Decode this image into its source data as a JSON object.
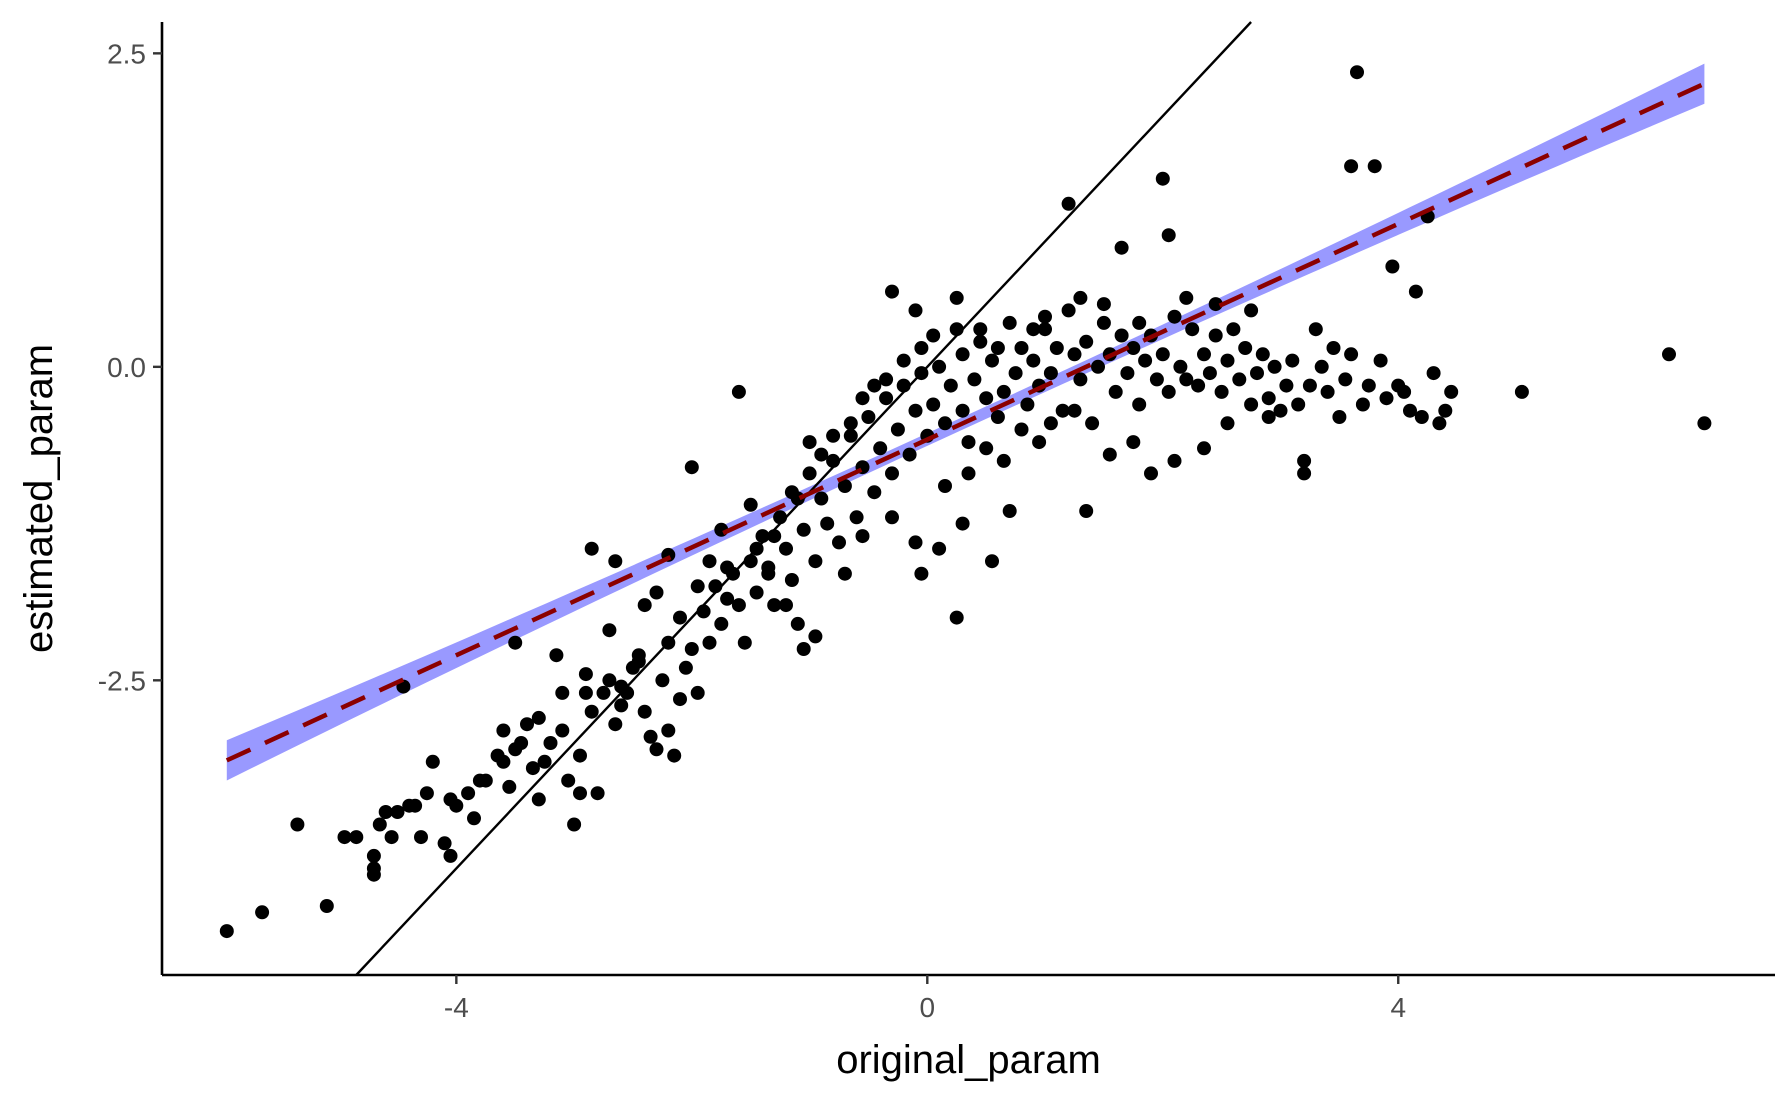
{
  "chart_data": {
    "type": "scatter",
    "title": "",
    "xlabel": "original_param",
    "ylabel": "estimated_param",
    "xlim": [
      -6.5,
      7.2
    ],
    "ylim": [
      -4.85,
      2.75
    ],
    "x_ticks": [
      -4,
      0,
      4
    ],
    "x_tick_labels": [
      "-4",
      "0",
      "4"
    ],
    "y_ticks": [
      -2.5,
      0.0,
      2.5
    ],
    "y_tick_labels": [
      "-2.5",
      "0.0",
      "2.5"
    ],
    "grid": false,
    "legend": "none",
    "identity_line": {
      "slope": 1,
      "intercept": 0,
      "color": "#000000"
    },
    "fit_line": {
      "intercept": -0.58,
      "slope": 0.43,
      "x_range": [
        -5.95,
        6.6
      ],
      "color": "#8B0000",
      "dash": "dashed",
      "ci_half_width_ends": 0.16,
      "ci_half_width_center": 0.05,
      "ci_color": "#9999ff"
    },
    "points_color": "#000000",
    "points": [
      [
        -5.95,
        -4.5
      ],
      [
        -5.65,
        -4.35
      ],
      [
        -5.35,
        -3.65
      ],
      [
        -5.1,
        -4.3
      ],
      [
        -4.95,
        -3.75
      ],
      [
        -4.85,
        -3.75
      ],
      [
        -4.7,
        -4.0
      ],
      [
        -4.7,
        -4.05
      ],
      [
        -4.65,
        -3.65
      ],
      [
        -4.6,
        -3.55
      ],
      [
        -4.5,
        -3.55
      ],
      [
        -4.4,
        -3.5
      ],
      [
        -4.45,
        -2.55
      ],
      [
        -4.3,
        -3.75
      ],
      [
        -4.25,
        -3.4
      ],
      [
        -4.1,
        -3.8
      ],
      [
        -4.05,
        -3.9
      ],
      [
        -4.0,
        -3.5
      ],
      [
        -3.9,
        -3.4
      ],
      [
        -3.85,
        -3.6
      ],
      [
        -3.75,
        -3.3
      ],
      [
        -3.65,
        -3.1
      ],
      [
        -3.6,
        -2.9
      ],
      [
        -3.55,
        -3.35
      ],
      [
        -3.5,
        -3.05
      ],
      [
        -3.4,
        -2.85
      ],
      [
        -3.35,
        -3.2
      ],
      [
        -3.3,
        -3.45
      ],
      [
        -3.25,
        -3.15
      ],
      [
        -3.2,
        -3.0
      ],
      [
        -3.15,
        -2.3
      ],
      [
        -3.1,
        -2.9
      ],
      [
        -3.05,
        -3.3
      ],
      [
        -3.0,
        -3.65
      ],
      [
        -2.95,
        -3.1
      ],
      [
        -2.95,
        -3.4
      ],
      [
        -2.9,
        -2.6
      ],
      [
        -2.85,
        -2.75
      ],
      [
        -2.8,
        -3.4
      ],
      [
        -2.75,
        -2.6
      ],
      [
        -2.7,
        -2.5
      ],
      [
        -2.65,
        -2.85
      ],
      [
        -2.6,
        -2.7
      ],
      [
        -2.55,
        -2.6
      ],
      [
        -2.5,
        -2.4
      ],
      [
        -2.45,
        -2.3
      ],
      [
        -2.4,
        -2.75
      ],
      [
        -2.35,
        -2.95
      ],
      [
        -2.3,
        -3.05
      ],
      [
        -2.25,
        -2.5
      ],
      [
        -2.2,
        -2.9
      ],
      [
        -2.15,
        -3.1
      ],
      [
        -2.1,
        -2.65
      ],
      [
        -2.05,
        -2.4
      ],
      [
        -2.0,
        -2.25
      ],
      [
        -1.95,
        -2.6
      ],
      [
        -1.9,
        -1.95
      ],
      [
        -1.85,
        -2.2
      ],
      [
        -1.8,
        -1.75
      ],
      [
        -1.75,
        -2.05
      ],
      [
        -1.7,
        -1.85
      ],
      [
        -1.65,
        -1.65
      ],
      [
        -1.6,
        -1.9
      ],
      [
        -1.55,
        -2.2
      ],
      [
        -1.5,
        -1.55
      ],
      [
        -1.45,
        -1.8
      ],
      [
        -1.4,
        -1.35
      ],
      [
        -1.35,
        -1.6
      ],
      [
        -1.3,
        -1.9
      ],
      [
        -1.25,
        -1.2
      ],
      [
        -1.2,
        -1.45
      ],
      [
        -1.15,
        -1.7
      ],
      [
        -1.1,
        -1.05
      ],
      [
        -1.05,
        -1.3
      ],
      [
        -1.0,
        -0.85
      ],
      [
        -0.95,
        -1.55
      ],
      [
        -0.9,
        -1.05
      ],
      [
        -0.85,
        -1.25
      ],
      [
        -0.8,
        -0.75
      ],
      [
        -0.75,
        -1.4
      ],
      [
        -0.7,
        -0.95
      ],
      [
        -0.65,
        -0.55
      ],
      [
        -0.6,
        -1.2
      ],
      [
        -0.55,
        -0.8
      ],
      [
        -0.5,
        -0.4
      ],
      [
        -0.45,
        -1.0
      ],
      [
        -0.4,
        -0.65
      ],
      [
        -0.35,
        -0.25
      ],
      [
        -0.3,
        -0.85
      ],
      [
        -0.25,
        -0.5
      ],
      [
        -0.2,
        -0.15
      ],
      [
        -0.15,
        -0.7
      ],
      [
        -0.1,
        -0.35
      ],
      [
        -0.05,
        -0.05
      ],
      [
        0.0,
        -0.55
      ],
      [
        0.05,
        -0.3
      ],
      [
        0.1,
        0.0
      ],
      [
        0.15,
        -0.45
      ],
      [
        0.2,
        -0.15
      ],
      [
        0.25,
        0.3
      ],
      [
        0.3,
        -0.35
      ],
      [
        0.35,
        -0.6
      ],
      [
        0.4,
        -0.1
      ],
      [
        0.45,
        0.2
      ],
      [
        0.5,
        -0.25
      ],
      [
        0.55,
        0.05
      ],
      [
        0.6,
        -0.4
      ],
      [
        0.65,
        -0.2
      ],
      [
        0.7,
        0.35
      ],
      [
        0.75,
        -0.05
      ],
      [
        0.8,
        0.15
      ],
      [
        0.85,
        -0.3
      ],
      [
        0.9,
        0.05
      ],
      [
        0.95,
        -0.15
      ],
      [
        1.0,
        0.3
      ],
      [
        1.05,
        -0.05
      ],
      [
        1.1,
        0.15
      ],
      [
        1.15,
        -0.35
      ],
      [
        1.2,
        0.45
      ],
      [
        1.25,
        0.1
      ],
      [
        1.3,
        -0.1
      ],
      [
        1.35,
        0.2
      ],
      [
        1.4,
        -0.45
      ],
      [
        1.45,
        0.0
      ],
      [
        1.5,
        0.35
      ],
      [
        1.55,
        0.1
      ],
      [
        1.6,
        -0.2
      ],
      [
        1.65,
        0.25
      ],
      [
        1.7,
        -0.05
      ],
      [
        1.75,
        0.15
      ],
      [
        1.8,
        -0.3
      ],
      [
        1.85,
        0.05
      ],
      [
        1.9,
        0.25
      ],
      [
        1.95,
        -0.1
      ],
      [
        2.0,
        0.1
      ],
      [
        2.05,
        -0.2
      ],
      [
        2.1,
        0.4
      ],
      [
        2.15,
        0.0
      ],
      [
        2.2,
        -0.1
      ],
      [
        2.25,
        0.3
      ],
      [
        2.3,
        -0.15
      ],
      [
        2.35,
        0.1
      ],
      [
        2.4,
        -0.05
      ],
      [
        2.45,
        0.25
      ],
      [
        2.5,
        -0.2
      ],
      [
        2.55,
        0.05
      ],
      [
        2.6,
        0.3
      ],
      [
        2.65,
        -0.1
      ],
      [
        2.7,
        0.15
      ],
      [
        2.75,
        -0.3
      ],
      [
        2.8,
        -0.05
      ],
      [
        2.85,
        0.1
      ],
      [
        2.9,
        -0.25
      ],
      [
        2.95,
        0.0
      ],
      [
        3.0,
        -0.35
      ],
      [
        3.05,
        -0.15
      ],
      [
        3.1,
        0.05
      ],
      [
        3.15,
        -0.3
      ],
      [
        3.2,
        -0.85
      ],
      [
        3.25,
        -0.15
      ],
      [
        3.3,
        0.3
      ],
      [
        3.35,
        0.0
      ],
      [
        3.4,
        -0.2
      ],
      [
        3.45,
        0.15
      ],
      [
        3.5,
        -0.4
      ],
      [
        3.55,
        -0.1
      ],
      [
        3.6,
        0.1
      ],
      [
        3.65,
        2.35
      ],
      [
        3.7,
        -0.3
      ],
      [
        3.75,
        -0.15
      ],
      [
        3.8,
        1.6
      ],
      [
        3.85,
        0.05
      ],
      [
        3.9,
        -0.25
      ],
      [
        3.95,
        0.8
      ],
      [
        4.0,
        -0.15
      ],
      [
        4.05,
        -0.2
      ],
      [
        4.1,
        -0.35
      ],
      [
        4.15,
        0.6
      ],
      [
        4.2,
        -0.4
      ],
      [
        4.25,
        1.2
      ],
      [
        4.3,
        -0.05
      ],
      [
        4.35,
        -0.45
      ],
      [
        4.4,
        -0.35
      ],
      [
        4.45,
        -0.2
      ],
      [
        5.05,
        -0.2
      ],
      [
        6.3,
        0.1
      ],
      [
        6.6,
        -0.45
      ],
      [
        3.6,
        1.6
      ],
      [
        2.0,
        1.5
      ],
      [
        1.2,
        1.3
      ],
      [
        2.05,
        1.05
      ],
      [
        1.65,
        0.95
      ],
      [
        -0.3,
        0.6
      ],
      [
        -0.1,
        0.45
      ],
      [
        0.25,
        0.55
      ],
      [
        -1.6,
        -0.2
      ],
      [
        -2.0,
        -0.8
      ],
      [
        -2.85,
        -1.45
      ],
      [
        -2.65,
        -1.55
      ],
      [
        -3.5,
        -2.2
      ],
      [
        -1.75,
        -1.3
      ],
      [
        -1.85,
        -1.55
      ],
      [
        -2.2,
        -1.5
      ],
      [
        -2.3,
        -1.8
      ],
      [
        -2.4,
        -1.9
      ],
      [
        -1.5,
        -1.1
      ],
      [
        -1.3,
        -1.35
      ],
      [
        -1.15,
        -1.0
      ],
      [
        -1.0,
        -0.6
      ],
      [
        -0.9,
        -0.7
      ],
      [
        -0.8,
        -0.55
      ],
      [
        -0.65,
        -0.45
      ],
      [
        -0.55,
        -0.25
      ],
      [
        -0.45,
        -0.15
      ],
      [
        -0.35,
        -0.1
      ],
      [
        -0.2,
        0.05
      ],
      [
        -0.05,
        0.15
      ],
      [
        0.05,
        0.25
      ],
      [
        0.3,
        0.1
      ],
      [
        0.45,
        0.3
      ],
      [
        0.6,
        0.15
      ],
      [
        0.9,
        0.3
      ],
      [
        1.0,
        0.4
      ],
      [
        1.3,
        0.55
      ],
      [
        1.5,
        0.5
      ],
      [
        1.8,
        0.35
      ],
      [
        2.2,
        0.55
      ],
      [
        2.45,
        0.5
      ],
      [
        2.75,
        0.45
      ],
      [
        -0.7,
        -1.65
      ],
      [
        -0.55,
        -1.35
      ],
      [
        -0.3,
        -1.2
      ],
      [
        -0.1,
        -1.4
      ],
      [
        0.1,
        -1.45
      ],
      [
        0.3,
        -1.25
      ],
      [
        0.55,
        -1.55
      ],
      [
        0.7,
        -1.15
      ],
      [
        -0.05,
        -1.65
      ],
      [
        0.25,
        -2.0
      ],
      [
        1.35,
        -1.15
      ],
      [
        -1.2,
        -1.9
      ],
      [
        -1.1,
        -2.05
      ],
      [
        -0.95,
        -2.15
      ],
      [
        -1.05,
        -2.25
      ],
      [
        -1.35,
        -1.65
      ],
      [
        -1.45,
        -1.45
      ],
      [
        -1.7,
        -1.6
      ],
      [
        -1.95,
        -1.75
      ],
      [
        -2.1,
        -2.0
      ],
      [
        -2.2,
        -2.2
      ],
      [
        -2.45,
        -2.35
      ],
      [
        -2.6,
        -2.55
      ],
      [
        -2.7,
        -2.1
      ],
      [
        -2.9,
        -2.45
      ],
      [
        -3.1,
        -2.6
      ],
      [
        -3.3,
        -2.8
      ],
      [
        -3.45,
        -3.0
      ],
      [
        -3.6,
        -3.15
      ],
      [
        -3.8,
        -3.3
      ],
      [
        -4.05,
        -3.45
      ],
      [
        -4.2,
        -3.15
      ],
      [
        -4.35,
        -3.5
      ],
      [
        -4.55,
        -3.75
      ],
      [
        -4.7,
        -3.9
      ],
      [
        0.15,
        -0.95
      ],
      [
        0.35,
        -0.85
      ],
      [
        0.5,
        -0.65
      ],
      [
        0.65,
        -0.75
      ],
      [
        0.8,
        -0.5
      ],
      [
        0.95,
        -0.6
      ],
      [
        1.05,
        -0.45
      ],
      [
        1.25,
        -0.35
      ],
      [
        1.55,
        -0.7
      ],
      [
        1.75,
        -0.6
      ],
      [
        1.9,
        -0.85
      ],
      [
        2.1,
        -0.75
      ],
      [
        2.35,
        -0.65
      ],
      [
        2.55,
        -0.45
      ],
      [
        2.9,
        -0.4
      ],
      [
        3.2,
        -0.75
      ]
    ]
  }
}
